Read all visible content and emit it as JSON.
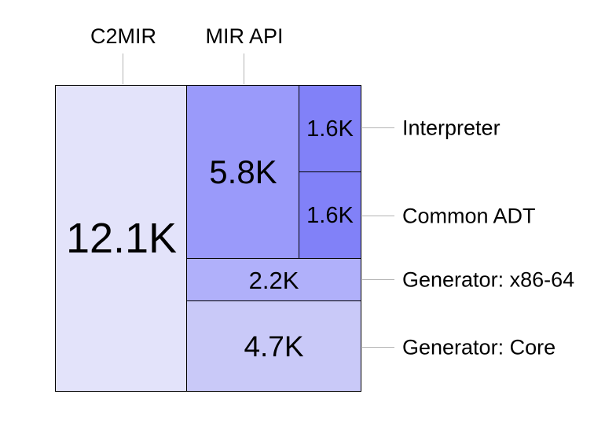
{
  "figure": {
    "background_color": "#ffffff",
    "border_color": "#000000",
    "leader_line_color": "#b4b4b4",
    "text_color": "#000000"
  },
  "chart_data": {
    "type": "treemap",
    "title": "",
    "legend_position": "none",
    "value_suffix": "K",
    "items": [
      {
        "name": "C2MIR",
        "value": 12.1,
        "value_label": "12.1K",
        "color": "#e3e3fa",
        "name_label_position": "top"
      },
      {
        "name": "MIR API",
        "value": 5.8,
        "value_label": "5.8K",
        "color": "#9a9afa",
        "name_label_position": "top"
      },
      {
        "name": "Interpreter",
        "value": 1.6,
        "value_label": "1.6K",
        "color": "#8181f8",
        "name_label_position": "right"
      },
      {
        "name": "Common ADT",
        "value": 1.6,
        "value_label": "1.6K",
        "color": "#8181f8",
        "name_label_position": "right"
      },
      {
        "name": "Generator: x86-64",
        "value": 2.2,
        "value_label": "2.2K",
        "color": "#b0b0fa",
        "name_label_position": "right"
      },
      {
        "name": "Generator: Core",
        "value": 4.7,
        "value_label": "4.7K",
        "color": "#c9c9f8",
        "name_label_position": "right"
      }
    ]
  }
}
